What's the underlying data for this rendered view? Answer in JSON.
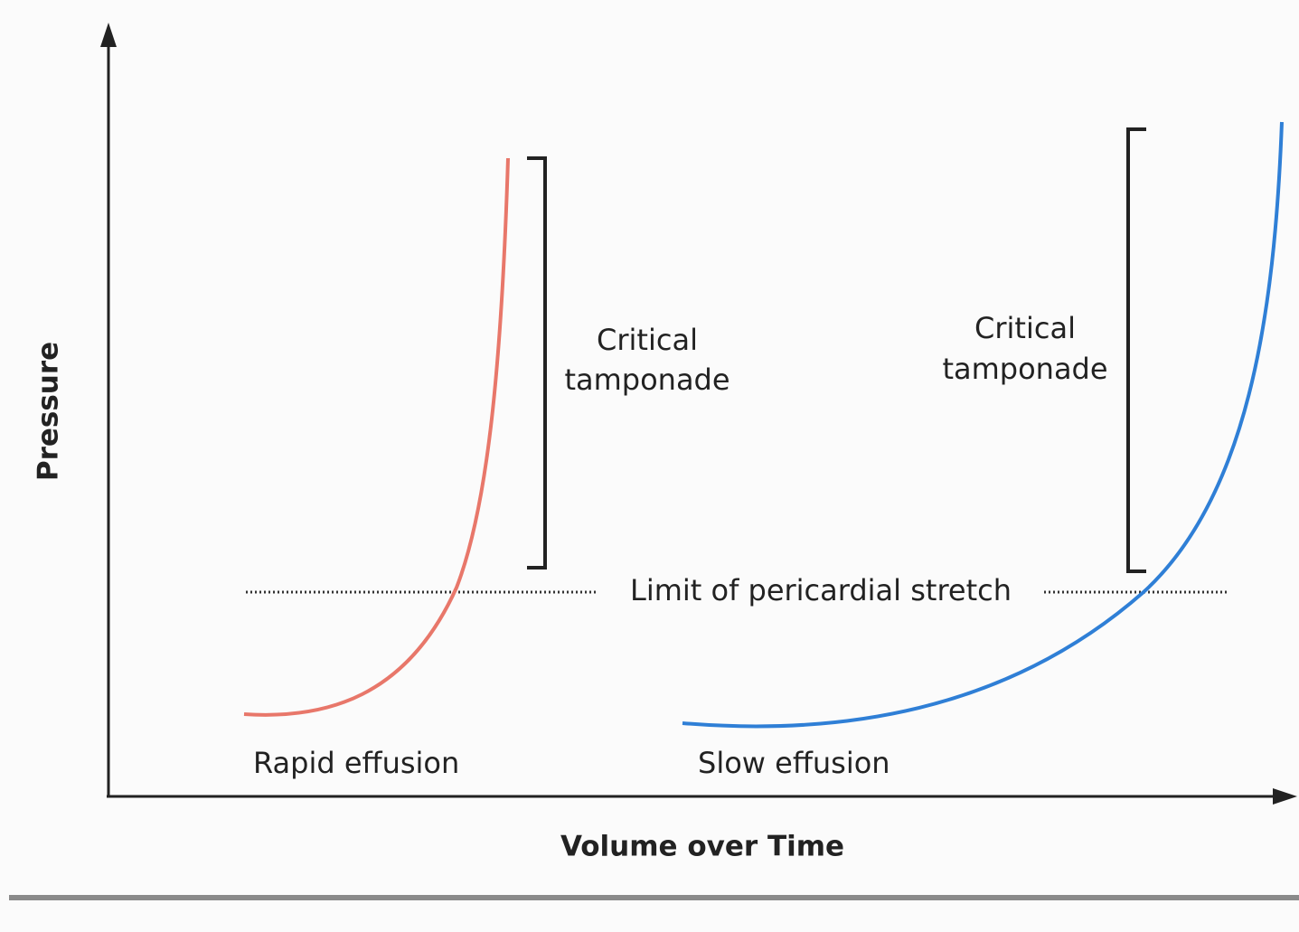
{
  "axes": {
    "y_label": "Pressure",
    "x_label": "Volume over Time"
  },
  "curves": [
    {
      "label": "Rapid effusion"
    },
    {
      "label": "Slow effusion"
    }
  ],
  "annotations": [
    {
      "lines": [
        "Critical",
        "tamponade"
      ]
    },
    {
      "lines": [
        "Critical",
        "tamponade"
      ]
    }
  ],
  "threshold": {
    "label": "Limit of pericardial stretch"
  }
}
